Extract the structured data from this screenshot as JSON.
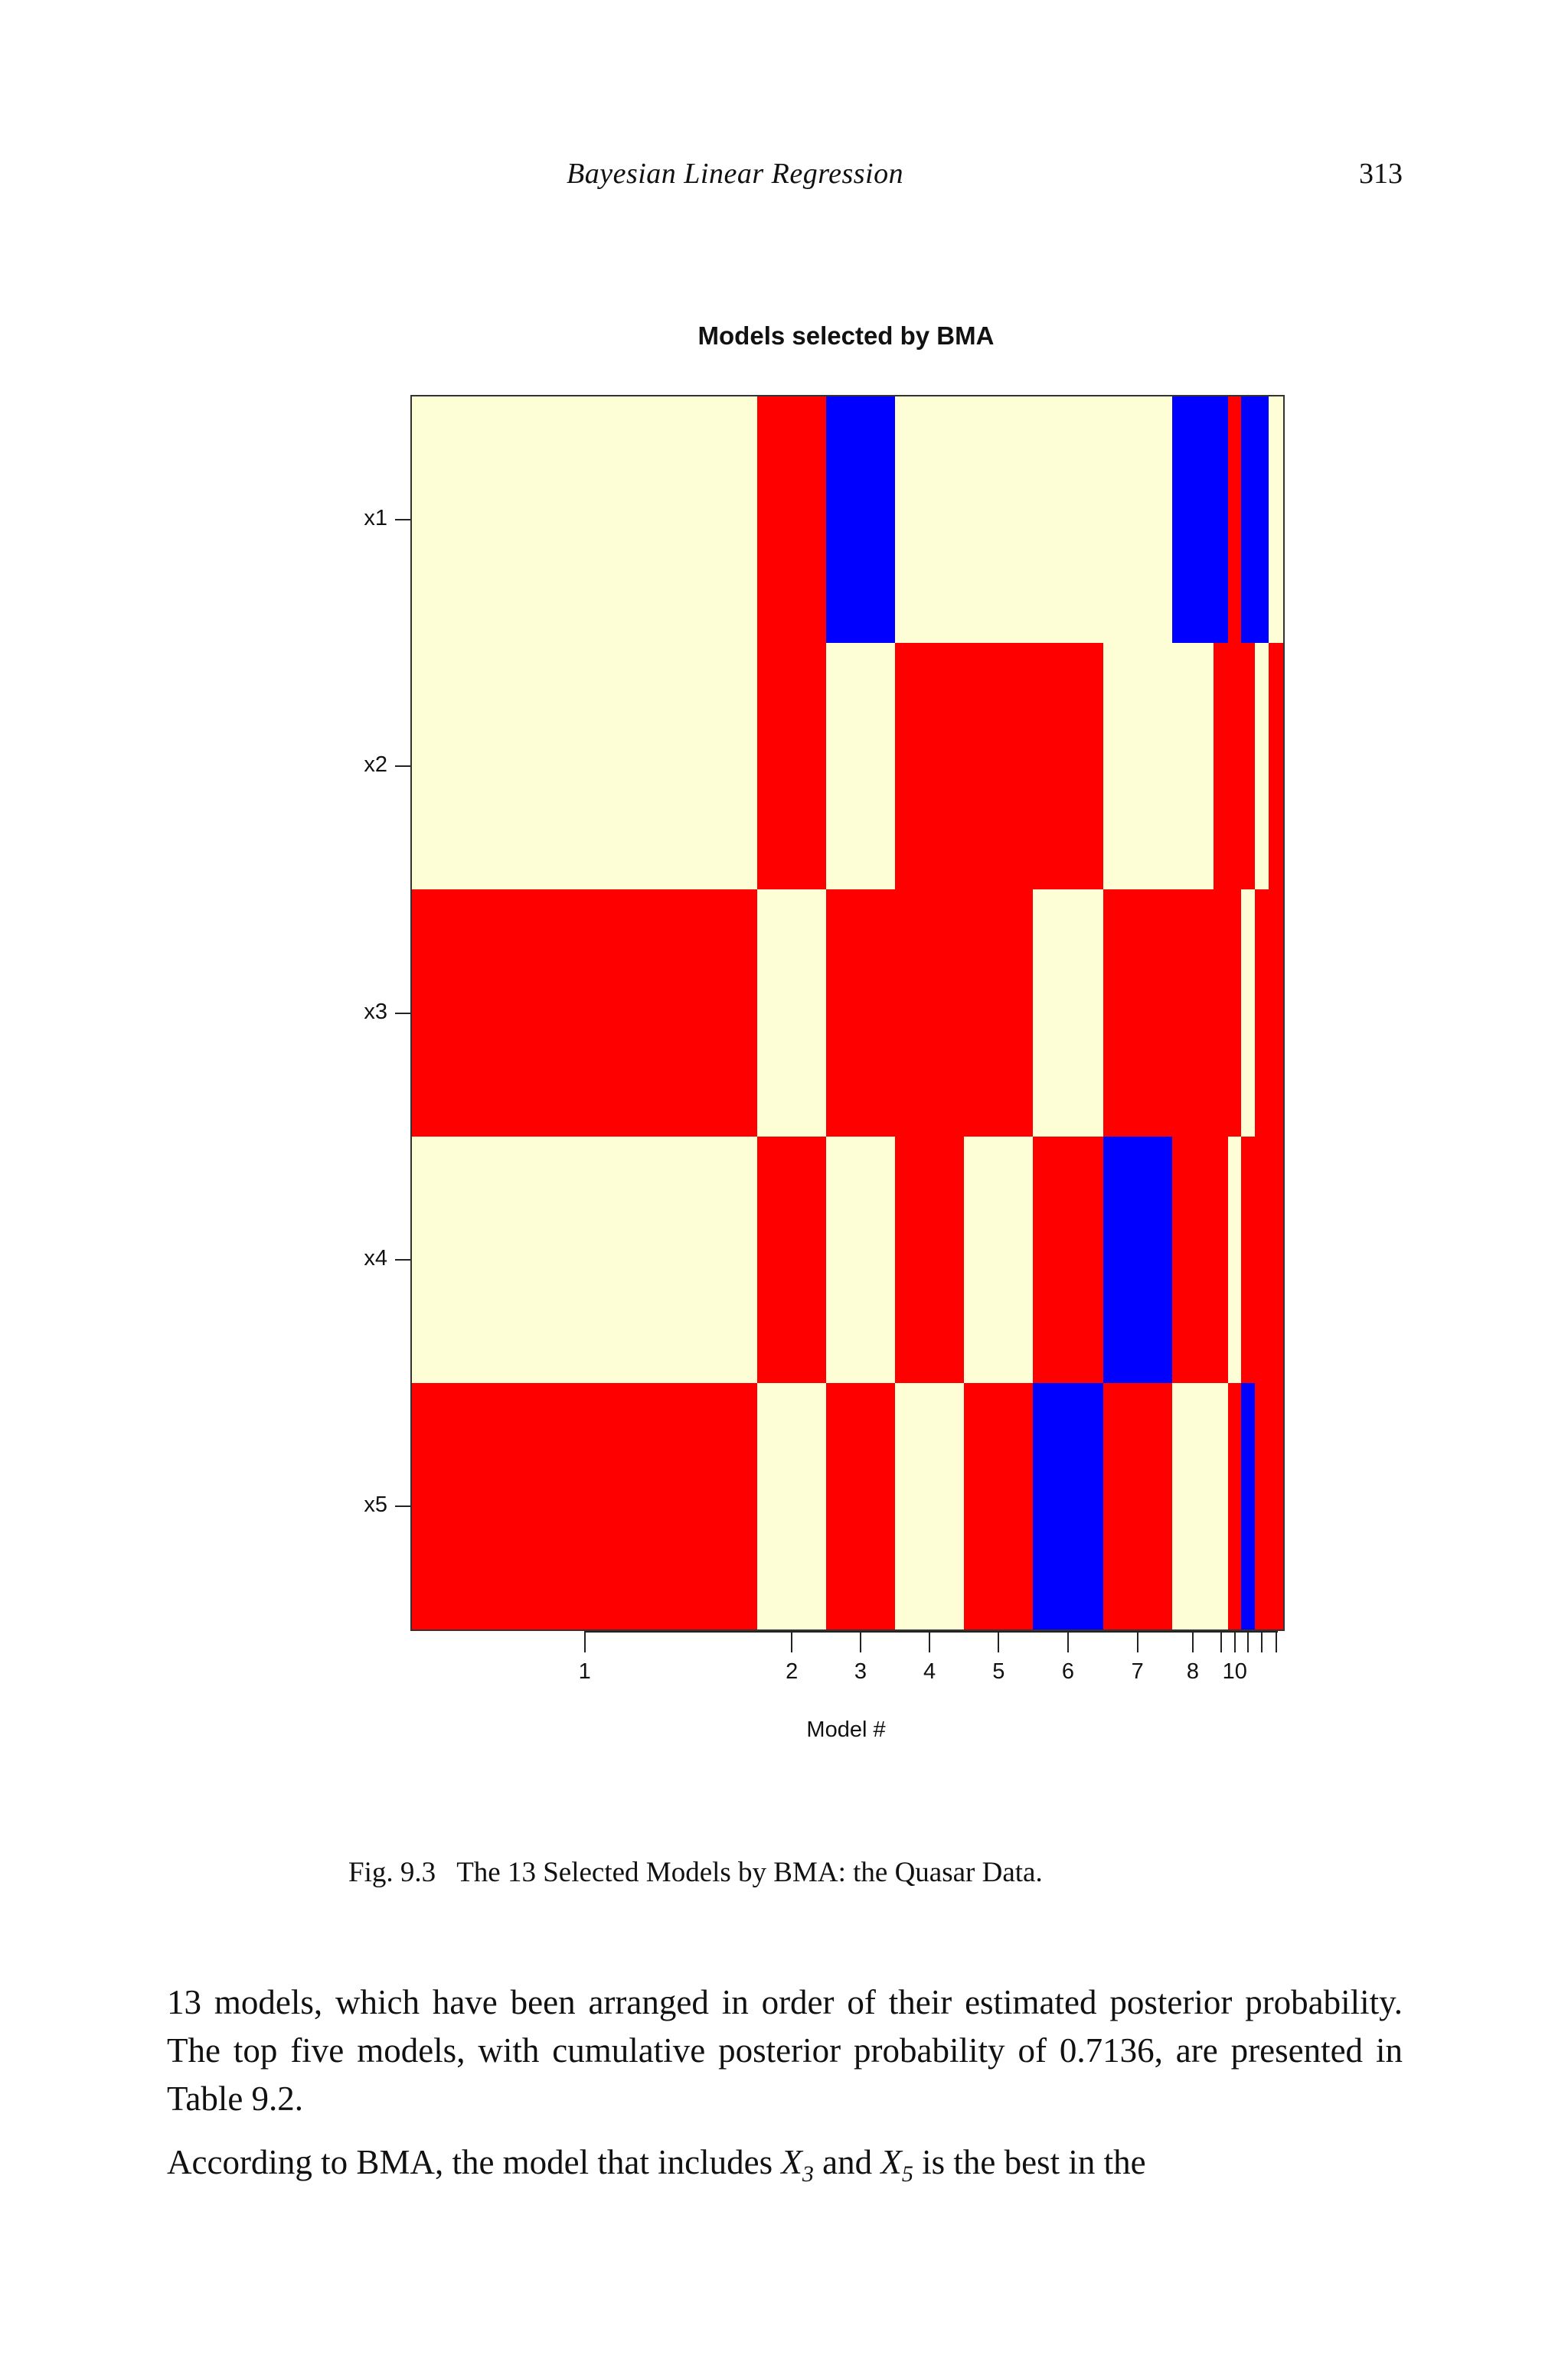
{
  "running_head": {
    "title": "Bayesian Linear Regression",
    "page_number": "313"
  },
  "figure": {
    "caption_label": "Fig. 9.3",
    "caption_text": "The 13 Selected Models by BMA: the Quasar Data."
  },
  "colors": {
    "positive": "#ff0000",
    "negative": "#0000ff",
    "excluded": "#fefed6",
    "frame": "#333333"
  },
  "chart_data": {
    "type": "heatmap",
    "title": "Models selected by BMA",
    "xlabel": "Model #",
    "ylabel": "",
    "rows": [
      "x1",
      "x2",
      "x3",
      "x4",
      "x5"
    ],
    "x_tick_labels": [
      "1",
      "2",
      "3",
      "4",
      "5",
      "6",
      "7",
      "8",
      "10"
    ],
    "n_models": 13,
    "column_widths_relative": [
      453,
      90,
      90,
      91,
      90,
      92,
      90,
      55,
      19,
      17,
      18,
      18,
      19
    ],
    "legend": {
      "R": "included, positive coefficient (red)",
      "B": "included, negative coefficient (blue)",
      "C": "not included (cream)"
    },
    "matrix": [
      [
        "C",
        "R",
        "B",
        "C",
        "C",
        "C",
        "C",
        "B",
        "B",
        "R",
        "B",
        "B",
        "C"
      ],
      [
        "C",
        "R",
        "C",
        "R",
        "R",
        "R",
        "C",
        "C",
        "R",
        "R",
        "R",
        "C",
        "R"
      ],
      [
        "R",
        "C",
        "R",
        "R",
        "R",
        "C",
        "R",
        "R",
        "R",
        "R",
        "C",
        "R",
        "R"
      ],
      [
        "C",
        "R",
        "C",
        "R",
        "C",
        "R",
        "B",
        "R",
        "R",
        "C",
        "R",
        "R",
        "R"
      ],
      [
        "R",
        "C",
        "R",
        "C",
        "R",
        "B",
        "R",
        "C",
        "C",
        "R",
        "B",
        "R",
        "R"
      ]
    ],
    "grid": false,
    "legend_position": "none"
  },
  "body": {
    "para1": "13 models, which have been arranged in order of their estimated posterior probability. The top five models, with cumulative posterior probability of 0.7136, are presented in Table 9.2.",
    "para2_pre": "According to BMA, the model that includes ",
    "var_a": "X",
    "var_a_sub": "3",
    "para2_mid": " and ",
    "var_b": "X",
    "var_b_sub": "5",
    "para2_post": " is the best in the"
  }
}
